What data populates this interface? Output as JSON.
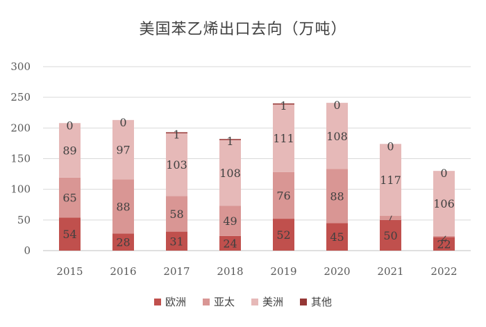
{
  "chart_data": {
    "type": "bar",
    "stacked": true,
    "title": "美国苯乙烯出口去向（万吨）",
    "categories": [
      "2015",
      "2016",
      "2017",
      "2018",
      "2019",
      "2020",
      "2021",
      "2022"
    ],
    "series": [
      {
        "name": "欧洲",
        "color": "#c0504d",
        "values": [
          54,
          28,
          31,
          24,
          52,
          45,
          50,
          22
        ]
      },
      {
        "name": "亚太",
        "color": "#d99694",
        "values": [
          65,
          88,
          58,
          49,
          76,
          88,
          7,
          2
        ]
      },
      {
        "name": "美洲",
        "color": "#e6b9b8",
        "values": [
          89,
          97,
          103,
          108,
          111,
          108,
          117,
          106
        ]
      },
      {
        "name": "其他",
        "color": "#953735",
        "values": [
          0,
          0,
          1,
          1,
          1,
          0,
          0,
          0
        ]
      }
    ],
    "ylim": [
      0,
      300
    ],
    "yticks": [
      0,
      50,
      100,
      150,
      200,
      250,
      300
    ],
    "grid": true,
    "legend": "bottom"
  }
}
